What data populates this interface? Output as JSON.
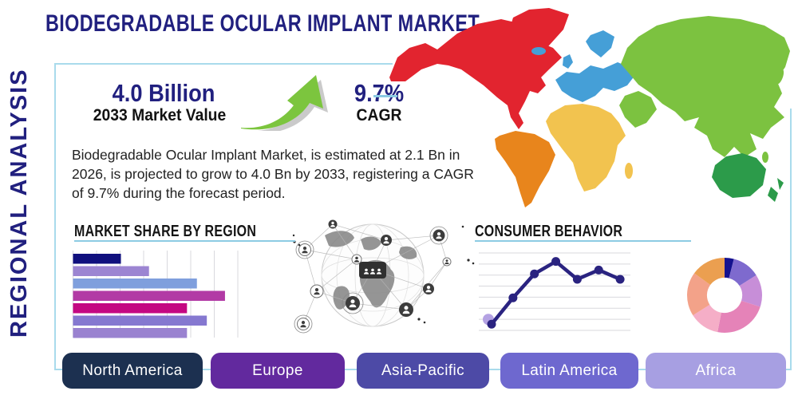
{
  "header": {
    "title": "BIODEGRADABLE OCULAR IMPLANT MARKET"
  },
  "sidebar": {
    "vertical_label": "REGIONAL ANALYSIS"
  },
  "stats": {
    "market_value": "4.0 Billion",
    "market_value_caption": "2033 Market Value",
    "cagr_value": "9.7%",
    "cagr_caption": "CAGR",
    "arrow_icon": "growth-arrow-icon",
    "arrow_color": "#7cc53e"
  },
  "description": "Biodegradable Ocular Implant Market, is estimated at 2.1 Bn in 2026, is projected to grow to 4.0 Bn by 2033, registering a CAGR of 9.7% during the forecast period.",
  "sections": {
    "market_share": {
      "heading": "MARKET SHARE BY REGION"
    },
    "consumer_behavior": {
      "heading": "CONSUMER BEHAVIOR"
    }
  },
  "colors": {
    "heading_navy": "#21207f",
    "panel_border": "#a9dbec",
    "underline": "#8ccbe3"
  },
  "map_regions": [
    {
      "name": "north-america",
      "color": "#e2242f"
    },
    {
      "name": "south-america",
      "color": "#e8851c"
    },
    {
      "name": "europe",
      "color": "#459fd7"
    },
    {
      "name": "africa",
      "color": "#f2c34f"
    },
    {
      "name": "asia",
      "color": "#7cc240"
    },
    {
      "name": "australia",
      "color": "#2c9b4a"
    }
  ],
  "region_buttons": [
    {
      "label": "North America",
      "color": "#1c3050"
    },
    {
      "label": "Europe",
      "color": "#62299e"
    },
    {
      "label": "Asia-Pacific",
      "color": "#4d4aa6"
    },
    {
      "label": "Latin America",
      "color": "#6e68cf"
    },
    {
      "label": "Africa",
      "color": "#a79fe2"
    }
  ],
  "chart_data": [
    {
      "type": "bar",
      "title": "MARKET SHARE BY REGION",
      "orientation": "horizontal",
      "categories": [
        "",
        "",
        "",
        "",
        "",
        "",
        ""
      ],
      "values": [
        29,
        46,
        75,
        92,
        69,
        81,
        69
      ],
      "bar_colors": [
        "#10107e",
        "#9c85d2",
        "#7f9fdd",
        "#b23aa5",
        "#c40882",
        "#8578d0",
        "#9a82d0"
      ],
      "xlim": [
        0,
        100
      ],
      "gridlines": 8,
      "grid": "vertical"
    },
    {
      "type": "line",
      "title": "CONSUMER BEHAVIOR",
      "x": [
        1,
        2,
        3,
        4,
        5,
        6,
        7
      ],
      "values": [
        8,
        42,
        73,
        89,
        66,
        78,
        66
      ],
      "ylim": [
        0,
        100
      ],
      "line_color": "#2a2380",
      "marker_color": "#2a2380",
      "start_halo_color": "#b4a2e3",
      "gridlines": 8,
      "grid": "horizontal"
    },
    {
      "type": "pie",
      "title": "",
      "values": [
        4,
        12,
        14,
        23,
        13,
        19,
        15
      ],
      "slice_colors": [
        "#15128f",
        "#7e6ace",
        "#c78ed8",
        "#e583b8",
        "#f5aec7",
        "#f3a289",
        "#eb9f50"
      ],
      "donut_hole": 0.47,
      "legend": "none"
    }
  ]
}
